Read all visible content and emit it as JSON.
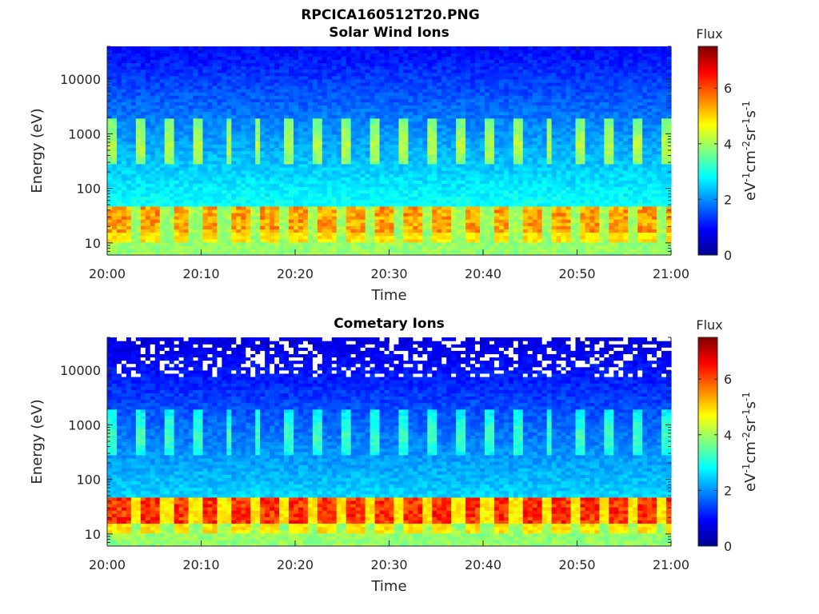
{
  "figure_title": "RPCICA160512T20.PNG",
  "chart_data": [
    {
      "type": "heatmap",
      "title": "Solar Wind Ions",
      "xlabel": "Time",
      "ylabel": "Energy (eV)",
      "x_range": [
        "20:00",
        "21:00"
      ],
      "x_ticks": [
        "20:00",
        "20:10",
        "20:20",
        "20:30",
        "20:40",
        "20:50",
        "21:00"
      ],
      "y_scale": "log",
      "y_range": [
        6,
        40000
      ],
      "y_ticks": [
        "10",
        "100",
        "1000",
        "10000"
      ],
      "colorbar": {
        "label": "eV-1cm-2sr-1s-1",
        "title": "Flux",
        "range": [
          0,
          7.5
        ],
        "ticks": [
          "0",
          "2",
          "4",
          "6"
        ],
        "colormap": "jet"
      },
      "features": {
        "background_flux": 2.2,
        "low_energy_band": {
          "energy_eV": [
            15,
            45
          ],
          "flux": 5.2,
          "cycle_period_min": 3.1,
          "peak_flux": 5.5
        },
        "mid_energy_pulses": {
          "energy_eV": [
            300,
            2000
          ],
          "flux": 4.2,
          "cycle_period_min": 3.1
        },
        "high_energy_flux": 1.2
      }
    },
    {
      "type": "heatmap",
      "title": "Cometary Ions",
      "xlabel": "Time",
      "ylabel": "Energy (eV)",
      "x_range": [
        "20:00",
        "21:00"
      ],
      "x_ticks": [
        "20:00",
        "20:10",
        "20:20",
        "20:30",
        "20:40",
        "20:50",
        "21:00"
      ],
      "y_scale": "log",
      "y_range": [
        6,
        40000
      ],
      "y_ticks": [
        "10",
        "100",
        "1000",
        "10000"
      ],
      "colorbar": {
        "label": "eV-1cm-2sr-1s-1",
        "title": "Flux",
        "range": [
          0,
          7.5
        ],
        "ticks": [
          "0",
          "2",
          "4",
          "6"
        ],
        "colormap": "jet"
      },
      "features": {
        "background_flux": 1.8,
        "low_energy_band": {
          "energy_eV": [
            15,
            45
          ],
          "flux": 6.0,
          "cycle_period_min": 3.1,
          "peak_flux": 6.6
        },
        "mid_energy_pulses": {
          "energy_eV": [
            300,
            2000
          ],
          "flux": 3.3,
          "cycle_period_min": 3.1
        },
        "high_energy_flux": 0.9,
        "missing_data_energy_eV": [
          8000,
          40000
        ]
      }
    }
  ]
}
